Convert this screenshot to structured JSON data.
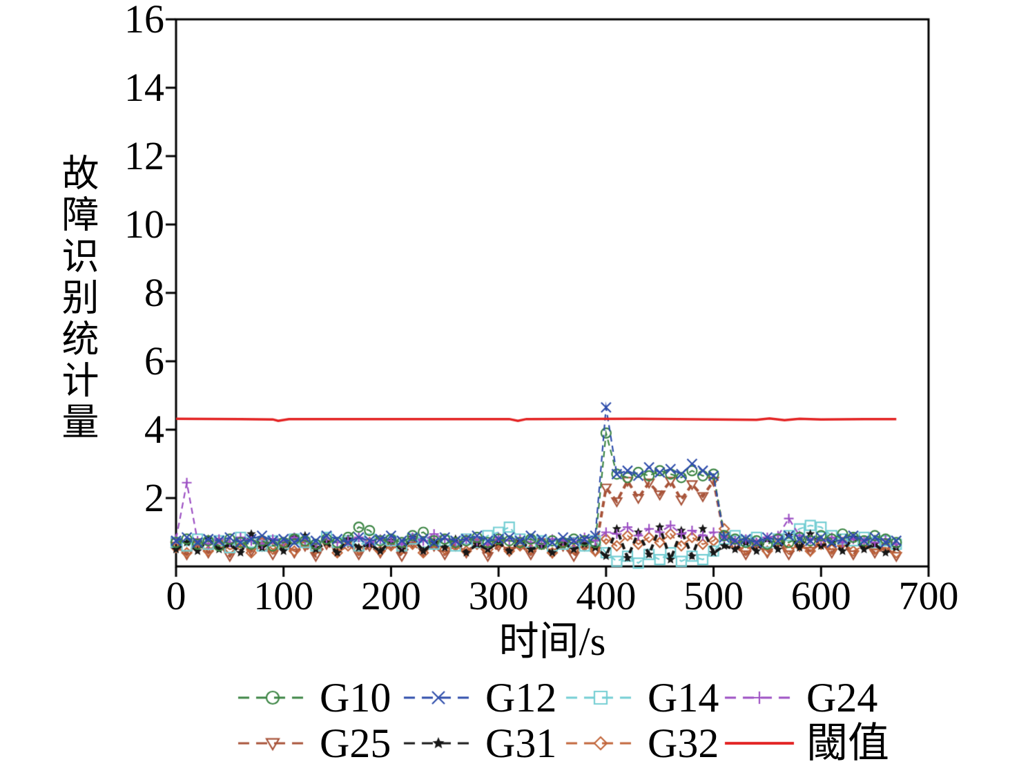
{
  "chart_data": {
    "type": "line",
    "title": "",
    "xlabel": "时间/s",
    "ylabel": "故障识别统计量",
    "xlim": [
      0,
      700
    ],
    "ylim": [
      0,
      16
    ],
    "xticks": [
      0,
      100,
      200,
      300,
      400,
      500,
      600,
      700
    ],
    "yticks": [
      2,
      4,
      6,
      8,
      10,
      12,
      14,
      16
    ],
    "grid": false,
    "legend_position": "below-two-rows",
    "x": [
      0,
      10,
      20,
      30,
      40,
      50,
      60,
      70,
      80,
      90,
      100,
      110,
      120,
      130,
      140,
      150,
      160,
      170,
      180,
      190,
      200,
      210,
      220,
      230,
      240,
      250,
      260,
      270,
      280,
      290,
      300,
      310,
      320,
      330,
      340,
      350,
      360,
      370,
      380,
      390,
      400,
      410,
      420,
      430,
      440,
      450,
      460,
      470,
      480,
      490,
      500,
      510,
      520,
      530,
      540,
      550,
      560,
      570,
      580,
      590,
      600,
      610,
      620,
      630,
      640,
      650,
      660,
      670
    ],
    "series": [
      {
        "name": "G10",
        "color": "#3c8544",
        "marker": "circle",
        "filled": false,
        "values": [
          0.7,
          0.8,
          0.65,
          0.75,
          0.6,
          0.8,
          0.7,
          0.65,
          0.75,
          0.6,
          0.7,
          0.8,
          0.75,
          0.65,
          0.8,
          0.7,
          0.85,
          1.15,
          1.05,
          0.75,
          0.8,
          0.7,
          0.9,
          1.0,
          0.75,
          0.8,
          0.7,
          0.75,
          0.85,
          0.7,
          0.8,
          0.75,
          0.7,
          0.8,
          0.65,
          0.75,
          0.7,
          0.8,
          0.75,
          0.7,
          3.9,
          2.7,
          2.6,
          2.75,
          2.65,
          2.8,
          2.7,
          2.6,
          2.8,
          2.65,
          2.7,
          0.9,
          0.8,
          0.7,
          0.75,
          0.65,
          0.8,
          0.7,
          0.85,
          0.75,
          0.9,
          0.8,
          0.95,
          0.85,
          0.75,
          0.9,
          0.8,
          0.7
        ]
      },
      {
        "name": "G12",
        "color": "#2e4dab",
        "marker": "x",
        "filled": false,
        "values": [
          0.75,
          0.85,
          0.7,
          0.8,
          0.75,
          0.85,
          0.7,
          0.8,
          0.9,
          0.75,
          0.8,
          0.7,
          0.85,
          0.75,
          0.9,
          0.8,
          0.7,
          0.85,
          0.75,
          0.8,
          0.9,
          0.75,
          0.85,
          0.8,
          0.7,
          0.85,
          0.75,
          0.8,
          0.9,
          0.75,
          0.8,
          0.85,
          0.75,
          0.9,
          0.8,
          0.7,
          0.85,
          0.75,
          0.8,
          0.9,
          4.65,
          2.7,
          2.8,
          2.65,
          2.9,
          2.75,
          2.85,
          2.7,
          3.0,
          2.8,
          2.65,
          0.85,
          0.75,
          0.8,
          0.7,
          0.85,
          0.75,
          0.9,
          0.8,
          0.75,
          0.85,
          0.7,
          0.8,
          0.9,
          0.75,
          0.85,
          0.7,
          0.75
        ]
      },
      {
        "name": "G14",
        "color": "#74ced3",
        "marker": "square",
        "filled": false,
        "values": [
          0.7,
          0.6,
          0.8,
          0.65,
          0.75,
          0.55,
          0.85,
          0.7,
          0.6,
          0.75,
          0.65,
          0.8,
          0.7,
          0.6,
          0.85,
          0.7,
          0.75,
          0.6,
          0.8,
          0.65,
          0.75,
          0.6,
          0.8,
          0.7,
          0.65,
          0.75,
          0.6,
          0.8,
          0.7,
          0.9,
          1.0,
          1.15,
          0.8,
          0.7,
          0.75,
          0.6,
          0.65,
          0.7,
          0.6,
          0.75,
          0.4,
          0.15,
          0.3,
          0.1,
          0.35,
          0.2,
          0.4,
          0.15,
          0.3,
          0.2,
          0.45,
          0.8,
          0.9,
          0.75,
          0.85,
          0.7,
          0.8,
          0.9,
          1.1,
          1.2,
          1.15,
          0.9,
          0.8,
          0.75,
          0.85,
          0.7,
          0.75,
          0.65
        ]
      },
      {
        "name": "G24",
        "color": "#9c4fc3",
        "marker": "plus",
        "filled": false,
        "values": [
          0.8,
          2.45,
          0.75,
          0.65,
          0.8,
          0.7,
          0.85,
          0.75,
          0.65,
          0.8,
          0.7,
          0.85,
          0.75,
          0.65,
          0.8,
          0.7,
          0.75,
          0.85,
          0.7,
          0.8,
          0.75,
          0.65,
          0.85,
          0.75,
          0.95,
          0.8,
          0.7,
          0.8,
          0.75,
          0.65,
          0.85,
          0.75,
          0.8,
          0.7,
          0.65,
          0.8,
          0.75,
          0.7,
          0.85,
          0.75,
          1.0,
          0.95,
          1.15,
          0.9,
          1.1,
          1.0,
          1.2,
          0.95,
          1.05,
          0.9,
          1.0,
          0.85,
          0.75,
          0.8,
          0.7,
          0.85,
          0.9,
          1.4,
          0.9,
          0.8,
          0.75,
          0.85,
          0.7,
          0.8,
          0.75,
          0.7,
          0.8,
          0.65
        ]
      },
      {
        "name": "G25",
        "color": "#a8543a",
        "marker": "triangle-down",
        "filled": false,
        "mass": true,
        "values": [
          0.6,
          0.35,
          0.7,
          0.4,
          0.65,
          0.3,
          0.75,
          0.45,
          0.6,
          0.35,
          0.7,
          0.4,
          0.6,
          0.3,
          0.65,
          0.45,
          0.7,
          0.35,
          0.6,
          0.4,
          0.65,
          0.3,
          0.7,
          0.45,
          0.6,
          0.35,
          0.65,
          0.4,
          0.7,
          0.3,
          0.6,
          0.45,
          0.65,
          0.35,
          0.7,
          0.4,
          0.6,
          0.3,
          0.65,
          0.45,
          2.3,
          1.9,
          2.5,
          2.0,
          2.45,
          2.1,
          2.5,
          1.95,
          2.4,
          2.05,
          2.5,
          0.9,
          0.6,
          0.35,
          0.65,
          0.4,
          0.7,
          0.35,
          0.6,
          0.45,
          0.7,
          0.4,
          0.65,
          0.35,
          0.6,
          0.4,
          0.55,
          0.3
        ]
      },
      {
        "name": "G31",
        "color": "#171717",
        "marker": "star",
        "filled": true,
        "mass": true,
        "values": [
          0.5,
          0.7,
          0.45,
          0.8,
          0.5,
          0.65,
          0.4,
          0.95,
          0.55,
          0.75,
          0.45,
          0.85,
          0.9,
          0.5,
          0.7,
          0.4,
          0.8,
          0.55,
          0.65,
          0.45,
          0.75,
          0.5,
          0.85,
          0.45,
          0.7,
          0.55,
          0.8,
          0.4,
          0.65,
          0.5,
          0.7,
          0.45,
          0.75,
          0.5,
          0.6,
          0.4,
          0.7,
          0.5,
          0.65,
          0.55,
          0.3,
          1.1,
          0.25,
          1.0,
          0.35,
          1.15,
          0.2,
          1.05,
          0.3,
          1.1,
          0.4,
          0.6,
          0.5,
          0.7,
          0.45,
          0.8,
          0.5,
          0.9,
          0.55,
          0.95,
          0.6,
          0.7,
          0.45,
          0.85,
          0.5,
          0.65,
          0.4,
          0.55
        ]
      },
      {
        "name": "G32",
        "color": "#c2673c",
        "marker": "diamond",
        "filled": false,
        "values": [
          0.55,
          0.4,
          0.65,
          0.45,
          0.7,
          0.5,
          0.6,
          0.4,
          0.7,
          0.5,
          0.6,
          0.45,
          0.65,
          0.5,
          0.75,
          0.4,
          0.6,
          0.5,
          0.7,
          0.45,
          0.6,
          0.5,
          0.65,
          0.4,
          0.7,
          0.5,
          0.6,
          0.45,
          0.65,
          0.5,
          0.7,
          0.45,
          0.6,
          0.5,
          0.65,
          0.4,
          0.7,
          0.5,
          0.6,
          0.45,
          0.8,
          0.6,
          0.9,
          0.65,
          0.85,
          0.7,
          0.95,
          0.6,
          0.85,
          0.65,
          0.75,
          1.1,
          0.6,
          0.5,
          0.65,
          0.45,
          0.7,
          0.5,
          0.6,
          0.45,
          0.65,
          0.5,
          0.7,
          0.45,
          0.6,
          0.5,
          0.55,
          0.4
        ]
      }
    ],
    "threshold": {
      "name": "閾值",
      "color": "#e32222",
      "value": 4.3,
      "points": [
        [
          0,
          4.32
        ],
        [
          60,
          4.31
        ],
        [
          90,
          4.3
        ],
        [
          95,
          4.26
        ],
        [
          105,
          4.31
        ],
        [
          200,
          4.31
        ],
        [
          310,
          4.31
        ],
        [
          318,
          4.26
        ],
        [
          326,
          4.31
        ],
        [
          430,
          4.32
        ],
        [
          540,
          4.29
        ],
        [
          552,
          4.33
        ],
        [
          566,
          4.28
        ],
        [
          580,
          4.32
        ],
        [
          600,
          4.3
        ],
        [
          640,
          4.31
        ],
        [
          670,
          4.31
        ]
      ]
    }
  }
}
